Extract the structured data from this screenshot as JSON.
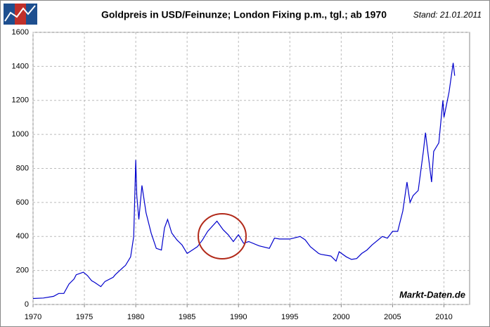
{
  "chart_data": {
    "type": "line",
    "title": "Goldpreis in USD/Feinunze; London Fixing p.m., tgl.; ab 1970",
    "subtitle": "Stand: 21.01.2011",
    "watermark": "Markt-Daten.de",
    "x": [
      1970,
      1971,
      1972,
      1972.5,
      1973,
      1973.5,
      1974,
      1974.2,
      1974.9,
      1975.3,
      1975.7,
      1976,
      1976.6,
      1977,
      1977.8,
      1978,
      1978.8,
      1979,
      1979.5,
      1979.8,
      1980.0,
      1980.1,
      1980.3,
      1980.6,
      1980.8,
      1981,
      1981.5,
      1982,
      1982.5,
      1982.8,
      1983.1,
      1983.5,
      1984,
      1984.5,
      1985,
      1985.5,
      1986,
      1986.5,
      1987,
      1987.9,
      1988.5,
      1989,
      1989.5,
      1990,
      1990.5,
      1991,
      1992,
      1993,
      1993.5,
      1994,
      1995,
      1996,
      1996.5,
      1997,
      1997.8,
      1998,
      1999,
      1999.5,
      1999.8,
      2000.5,
      2001,
      2001.5,
      2002,
      2002.5,
      2003,
      2004,
      2004.5,
      2005,
      2005.5,
      2006,
      2006.4,
      2006.7,
      2007,
      2007.5,
      2008,
      2008.2,
      2008.8,
      2009,
      2009.5,
      2009.9,
      2010,
      2010.5,
      2010.9,
      2011.05
    ],
    "series": [
      {
        "name": "Goldpreis",
        "color": "#0000cc",
        "values": [
          35,
          38,
          48,
          65,
          65,
          120,
          150,
          175,
          190,
          170,
          140,
          130,
          105,
          135,
          160,
          175,
          220,
          230,
          280,
          400,
          850,
          640,
          500,
          700,
          620,
          540,
          420,
          330,
          320,
          450,
          500,
          420,
          380,
          350,
          300,
          320,
          340,
          380,
          430,
          490,
          440,
          410,
          370,
          410,
          360,
          370,
          345,
          330,
          390,
          385,
          385,
          400,
          380,
          340,
          300,
          295,
          285,
          255,
          310,
          280,
          265,
          270,
          300,
          320,
          350,
          400,
          390,
          430,
          430,
          550,
          720,
          600,
          640,
          670,
          900,
          1010,
          720,
          900,
          950,
          1200,
          1100,
          1250,
          1420,
          1345
        ]
      }
    ],
    "xlim": [
      1970,
      2012.5
    ],
    "xticks": [
      1970,
      1975,
      1980,
      1985,
      1990,
      1995,
      2000,
      2005,
      2010
    ],
    "ylim": [
      0,
      1600
    ],
    "yticks": [
      0,
      200,
      400,
      600,
      800,
      1000,
      1200,
      1400,
      1600
    ],
    "grid": true
  }
}
